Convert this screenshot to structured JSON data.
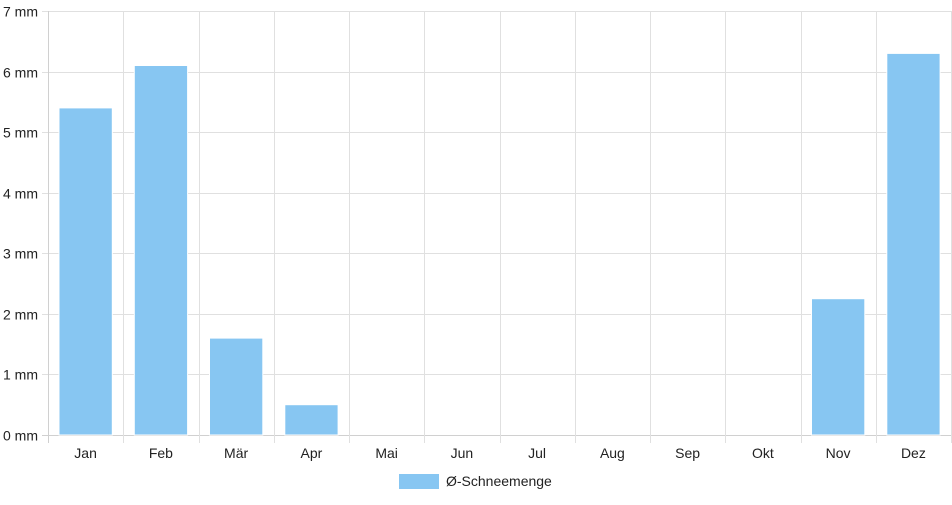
{
  "colors": {
    "bar_fill": "#87c6f2",
    "bar_edge": "#ffffff",
    "grid": "#e0e0e0",
    "axis": "#d0d0d0",
    "text": "#222222"
  },
  "chart_data": {
    "type": "bar",
    "title": "",
    "xlabel": "",
    "ylabel": "",
    "categories": [
      "Jan",
      "Feb",
      "Mär",
      "Apr",
      "Mai",
      "Jun",
      "Jul",
      "Aug",
      "Sep",
      "Okt",
      "Nov",
      "Dez"
    ],
    "series": [
      {
        "name": "Ø-Schneemenge",
        "values": [
          5.4,
          6.1,
          1.6,
          0.5,
          0,
          0,
          0,
          0,
          0,
          0,
          2.25,
          6.3
        ]
      }
    ],
    "ylim": [
      0,
      7
    ],
    "yticks": [
      0,
      1,
      2,
      3,
      4,
      5,
      6,
      7
    ],
    "ytick_labels": [
      "0 mm",
      "1 mm",
      "2 mm",
      "3 mm",
      "4 mm",
      "5 mm",
      "6 mm",
      "7 mm"
    ],
    "grid": true,
    "legend_position": "bottom-center"
  }
}
